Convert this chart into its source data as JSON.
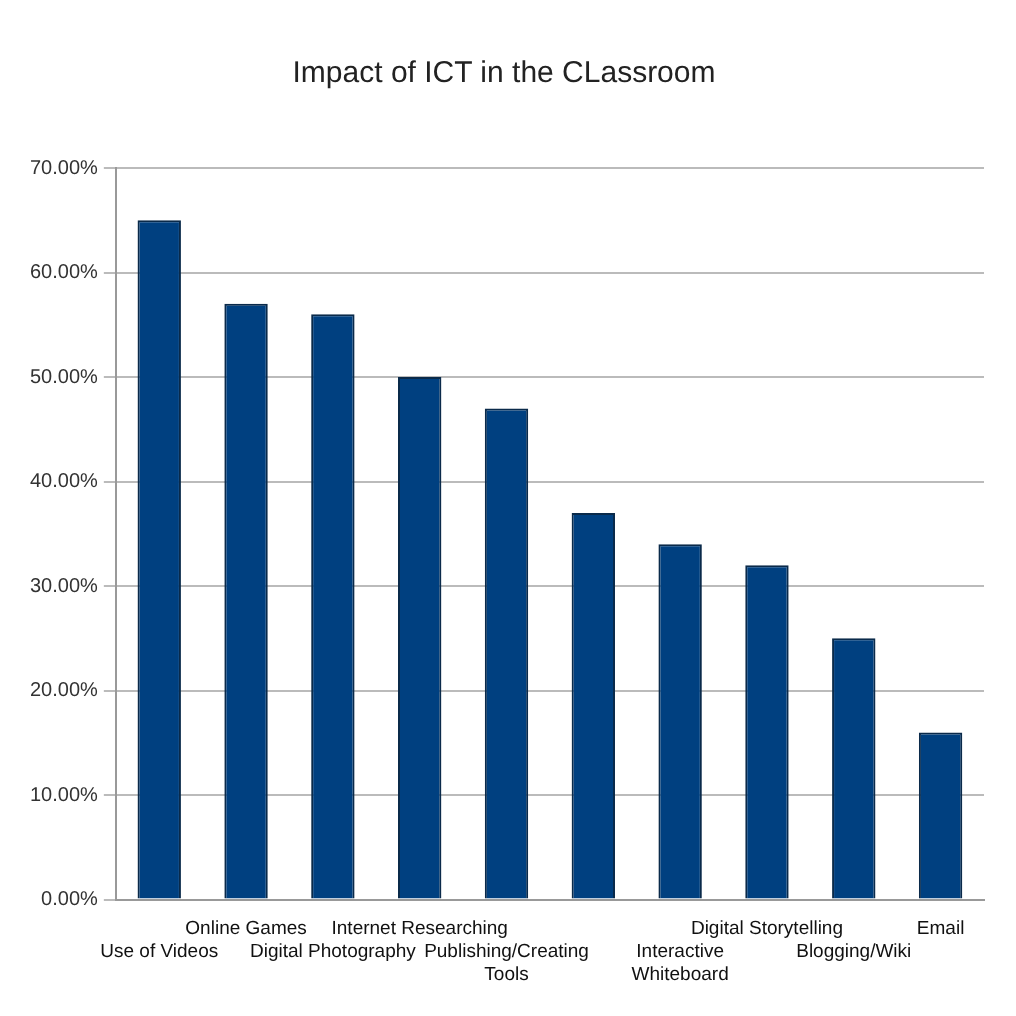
{
  "chart_data": {
    "type": "bar",
    "title": "Impact of ICT in the CLassroom",
    "categories": [
      "Use of Videos",
      "Online Games",
      "Digital Photography",
      "Internet Researching",
      "Publishing/Creating Tools",
      null,
      "Interactive Whiteboard",
      "Digital Storytelling",
      "Blogging/Wiki",
      "Email"
    ],
    "values": [
      65,
      57,
      56,
      50,
      47,
      37,
      34,
      32,
      25,
      16
    ],
    "color": "#004080",
    "ylim": [
      0,
      70
    ],
    "yticks": [
      {
        "value": 0,
        "label": "0.00%"
      },
      {
        "value": 10,
        "label": "10.00%"
      },
      {
        "value": 20,
        "label": "20.00%"
      },
      {
        "value": 30,
        "label": "30.00%"
      },
      {
        "value": 40,
        "label": "40.00%"
      },
      {
        "value": 50,
        "label": "50.00%"
      },
      {
        "value": 60,
        "label": "60.00%"
      },
      {
        "value": 70,
        "label": "70.00%"
      }
    ],
    "grid": "y",
    "legend": false
  }
}
